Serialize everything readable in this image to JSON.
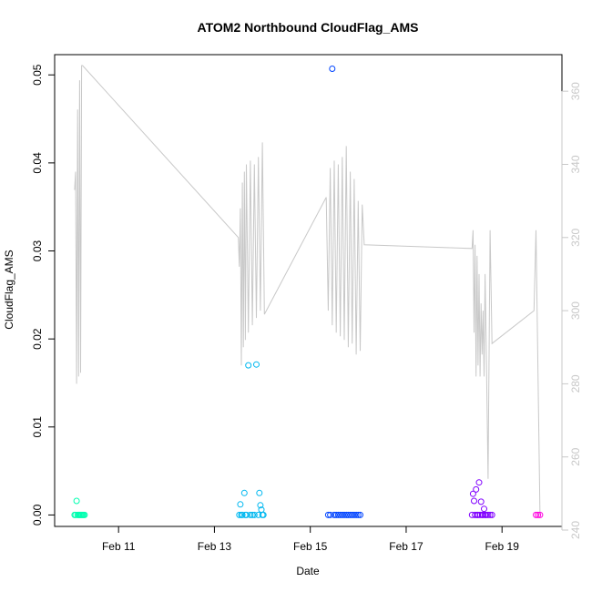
{
  "chart_data": {
    "type": "scatter",
    "title": "ATOM2 Northbound CloudFlag_AMS",
    "xlabel": "Date",
    "ylabel": "CloudFlag_AMS",
    "x_unit": "date",
    "xlim": [
      "2024-02-09 16:00",
      "2024-02-20 06:00"
    ],
    "x_ticks": [
      {
        "label": "Feb 11",
        "value": "2024-02-11"
      },
      {
        "label": "Feb 13",
        "value": "2024-02-13"
      },
      {
        "label": "Feb 15",
        "value": "2024-02-15"
      },
      {
        "label": "Feb 17",
        "value": "2024-02-17"
      },
      {
        "label": "Feb 19",
        "value": "2024-02-19"
      }
    ],
    "ylim": [
      -0.0013,
      0.0523
    ],
    "y_ticks": [
      "0.00",
      "0.01",
      "0.02",
      "0.03",
      "0.04",
      "0.05"
    ],
    "y_right_lim": [
      241,
      370
    ],
    "y_right_ticks": [
      "240",
      "260",
      "280",
      "300",
      "320",
      "340",
      "360"
    ],
    "right_axis_color": "#c8c8c8",
    "grid": false,
    "legend": "none",
    "series": [
      {
        "color": "#00ffb0",
        "points": [
          [
            "2024-02-10 02:00",
            0
          ],
          [
            "2024-02-10 02:30",
            0
          ],
          [
            "2024-02-10 03:00",
            0.0016
          ],
          [
            "2024-02-10 03:30",
            0
          ],
          [
            "2024-02-10 04:00",
            0
          ],
          [
            "2024-02-10 04:30",
            0
          ],
          [
            "2024-02-10 05:00",
            0
          ],
          [
            "2024-02-10 05:30",
            0
          ],
          [
            "2024-02-10 06:00",
            0
          ],
          [
            "2024-02-10 06:30",
            0
          ],
          [
            "2024-02-10 07:00",
            0
          ]
        ]
      },
      {
        "color": "#00b8f0",
        "points": [
          [
            "2024-02-13 12:30",
            0
          ],
          [
            "2024-02-13 13:00",
            0.0012
          ],
          [
            "2024-02-13 13:30",
            0
          ],
          [
            "2024-02-13 14:00",
            0
          ],
          [
            "2024-02-13 15:00",
            0.0025
          ],
          [
            "2024-02-13 15:30",
            0
          ],
          [
            "2024-02-13 16:00",
            0
          ],
          [
            "2024-02-13 17:00",
            0.017
          ],
          [
            "2024-02-13 18:00",
            0
          ],
          [
            "2024-02-13 19:00",
            0
          ],
          [
            "2024-02-13 20:00",
            0
          ],
          [
            "2024-02-13 21:00",
            0.0171
          ],
          [
            "2024-02-13 22:00",
            0
          ],
          [
            "2024-02-13 22:30",
            0.0025
          ],
          [
            "2024-02-13 23:00",
            0.0011
          ],
          [
            "2024-02-13 23:30",
            0.0006
          ],
          [
            "2024-02-14 00:00",
            0
          ],
          [
            "2024-02-14 00:30",
            0
          ]
        ]
      },
      {
        "color": "#0044ff",
        "points": [
          [
            "2024-02-15 09:00",
            0
          ],
          [
            "2024-02-15 10:00",
            0
          ],
          [
            "2024-02-15 11:00",
            0.0507
          ],
          [
            "2024-02-15 12:00",
            0
          ],
          [
            "2024-02-15 13:00",
            0
          ],
          [
            "2024-02-15 14:00",
            0
          ],
          [
            "2024-02-15 15:00",
            0
          ],
          [
            "2024-02-15 16:00",
            0
          ],
          [
            "2024-02-15 17:00",
            0
          ],
          [
            "2024-02-15 18:00",
            0
          ],
          [
            "2024-02-15 19:00",
            0
          ],
          [
            "2024-02-15 20:00",
            0
          ],
          [
            "2024-02-15 21:00",
            0
          ],
          [
            "2024-02-15 22:00",
            0
          ],
          [
            "2024-02-15 23:00",
            0
          ],
          [
            "2024-02-16 00:00",
            0
          ],
          [
            "2024-02-16 01:00",
            0
          ]
        ]
      },
      {
        "color": "#8000ff",
        "points": [
          [
            "2024-02-18 09:00",
            0
          ],
          [
            "2024-02-18 09:30",
            0.0024
          ],
          [
            "2024-02-18 10:00",
            0.0016
          ],
          [
            "2024-02-18 10:30",
            0
          ],
          [
            "2024-02-18 11:00",
            0.0029
          ],
          [
            "2024-02-18 11:30",
            0
          ],
          [
            "2024-02-18 12:00",
            0
          ],
          [
            "2024-02-18 12:30",
            0.0037
          ],
          [
            "2024-02-18 13:00",
            0
          ],
          [
            "2024-02-18 13:30",
            0.0015
          ],
          [
            "2024-02-18 14:00",
            0
          ],
          [
            "2024-02-18 14:30",
            0
          ],
          [
            "2024-02-18 15:00",
            0.0007
          ],
          [
            "2024-02-18 15:30",
            0
          ],
          [
            "2024-02-18 16:00",
            0
          ],
          [
            "2024-02-18 17:00",
            0
          ],
          [
            "2024-02-18 18:00",
            0
          ],
          [
            "2024-02-18 19:00",
            0
          ]
        ]
      },
      {
        "color": "#ff00e0",
        "points": [
          [
            "2024-02-19 17:00",
            0
          ],
          [
            "2024-02-19 18:00",
            0
          ],
          [
            "2024-02-19 19:00",
            0
          ]
        ]
      }
    ],
    "line_series": {
      "color": "#c8c8c8",
      "axis": "right",
      "points": [
        [
          "2024-02-10 02:00",
          333
        ],
        [
          "2024-02-10 02:30",
          338
        ],
        [
          "2024-02-10 03:00",
          280
        ],
        [
          "2024-02-10 03:30",
          355
        ],
        [
          "2024-02-10 04:00",
          282
        ],
        [
          "2024-02-10 04:30",
          363
        ],
        [
          "2024-02-10 05:00",
          283
        ],
        [
          "2024-02-10 05:30",
          367
        ],
        [
          "2024-02-10 06:00",
          367
        ],
        [
          "2024-02-13 12:00",
          320
        ],
        [
          "2024-02-13 12:30",
          312
        ],
        [
          "2024-02-13 13:00",
          328
        ],
        [
          "2024-02-13 13:30",
          285
        ],
        [
          "2024-02-13 14:00",
          335
        ],
        [
          "2024-02-13 14:30",
          290
        ],
        [
          "2024-02-13 15:00",
          338
        ],
        [
          "2024-02-13 15:30",
          292
        ],
        [
          "2024-02-13 16:00",
          340
        ],
        [
          "2024-02-13 17:00",
          294
        ],
        [
          "2024-02-13 18:00",
          341
        ],
        [
          "2024-02-13 19:00",
          296
        ],
        [
          "2024-02-13 20:00",
          340
        ],
        [
          "2024-02-13 21:00",
          298
        ],
        [
          "2024-02-13 22:00",
          342
        ],
        [
          "2024-02-13 23:00",
          300
        ],
        [
          "2024-02-14 00:00",
          346
        ],
        [
          "2024-02-14 01:00",
          299
        ],
        [
          "2024-02-15 08:00",
          331
        ],
        [
          "2024-02-15 09:00",
          300
        ],
        [
          "2024-02-15 10:00",
          339
        ],
        [
          "2024-02-15 11:00",
          296
        ],
        [
          "2024-02-15 12:00",
          341
        ],
        [
          "2024-02-15 13:00",
          294
        ],
        [
          "2024-02-15 14:00",
          340
        ],
        [
          "2024-02-15 15:00",
          293
        ],
        [
          "2024-02-15 16:00",
          342
        ],
        [
          "2024-02-15 17:00",
          292
        ],
        [
          "2024-02-15 18:00",
          345
        ],
        [
          "2024-02-15 19:00",
          290
        ],
        [
          "2024-02-15 20:00",
          338
        ],
        [
          "2024-02-15 21:00",
          291
        ],
        [
          "2024-02-15 22:00",
          336
        ],
        [
          "2024-02-15 23:00",
          288
        ],
        [
          "2024-02-16 00:00",
          330
        ],
        [
          "2024-02-16 01:00",
          289
        ],
        [
          "2024-02-16 02:00",
          329
        ],
        [
          "2024-02-16 03:00",
          318
        ],
        [
          "2024-02-18 09:00",
          317
        ],
        [
          "2024-02-18 09:30",
          322
        ],
        [
          "2024-02-18 10:00",
          294
        ],
        [
          "2024-02-18 10:30",
          318
        ],
        [
          "2024-02-18 11:00",
          282
        ],
        [
          "2024-02-18 11:30",
          315
        ],
        [
          "2024-02-18 12:00",
          285
        ],
        [
          "2024-02-18 12:30",
          310
        ],
        [
          "2024-02-18 13:00",
          282
        ],
        [
          "2024-02-18 13:30",
          302
        ],
        [
          "2024-02-18 14:00",
          288
        ],
        [
          "2024-02-18 14:30",
          300
        ],
        [
          "2024-02-18 15:00",
          282
        ],
        [
          "2024-02-18 15:30",
          310
        ],
        [
          "2024-02-18 16:00",
          293
        ],
        [
          "2024-02-18 17:00",
          254
        ],
        [
          "2024-02-18 18:00",
          322
        ],
        [
          "2024-02-18 19:00",
          291
        ],
        [
          "2024-02-19 16:00",
          300
        ],
        [
          "2024-02-19 17:00",
          322
        ],
        [
          "2024-02-19 19:00",
          244
        ]
      ]
    }
  }
}
